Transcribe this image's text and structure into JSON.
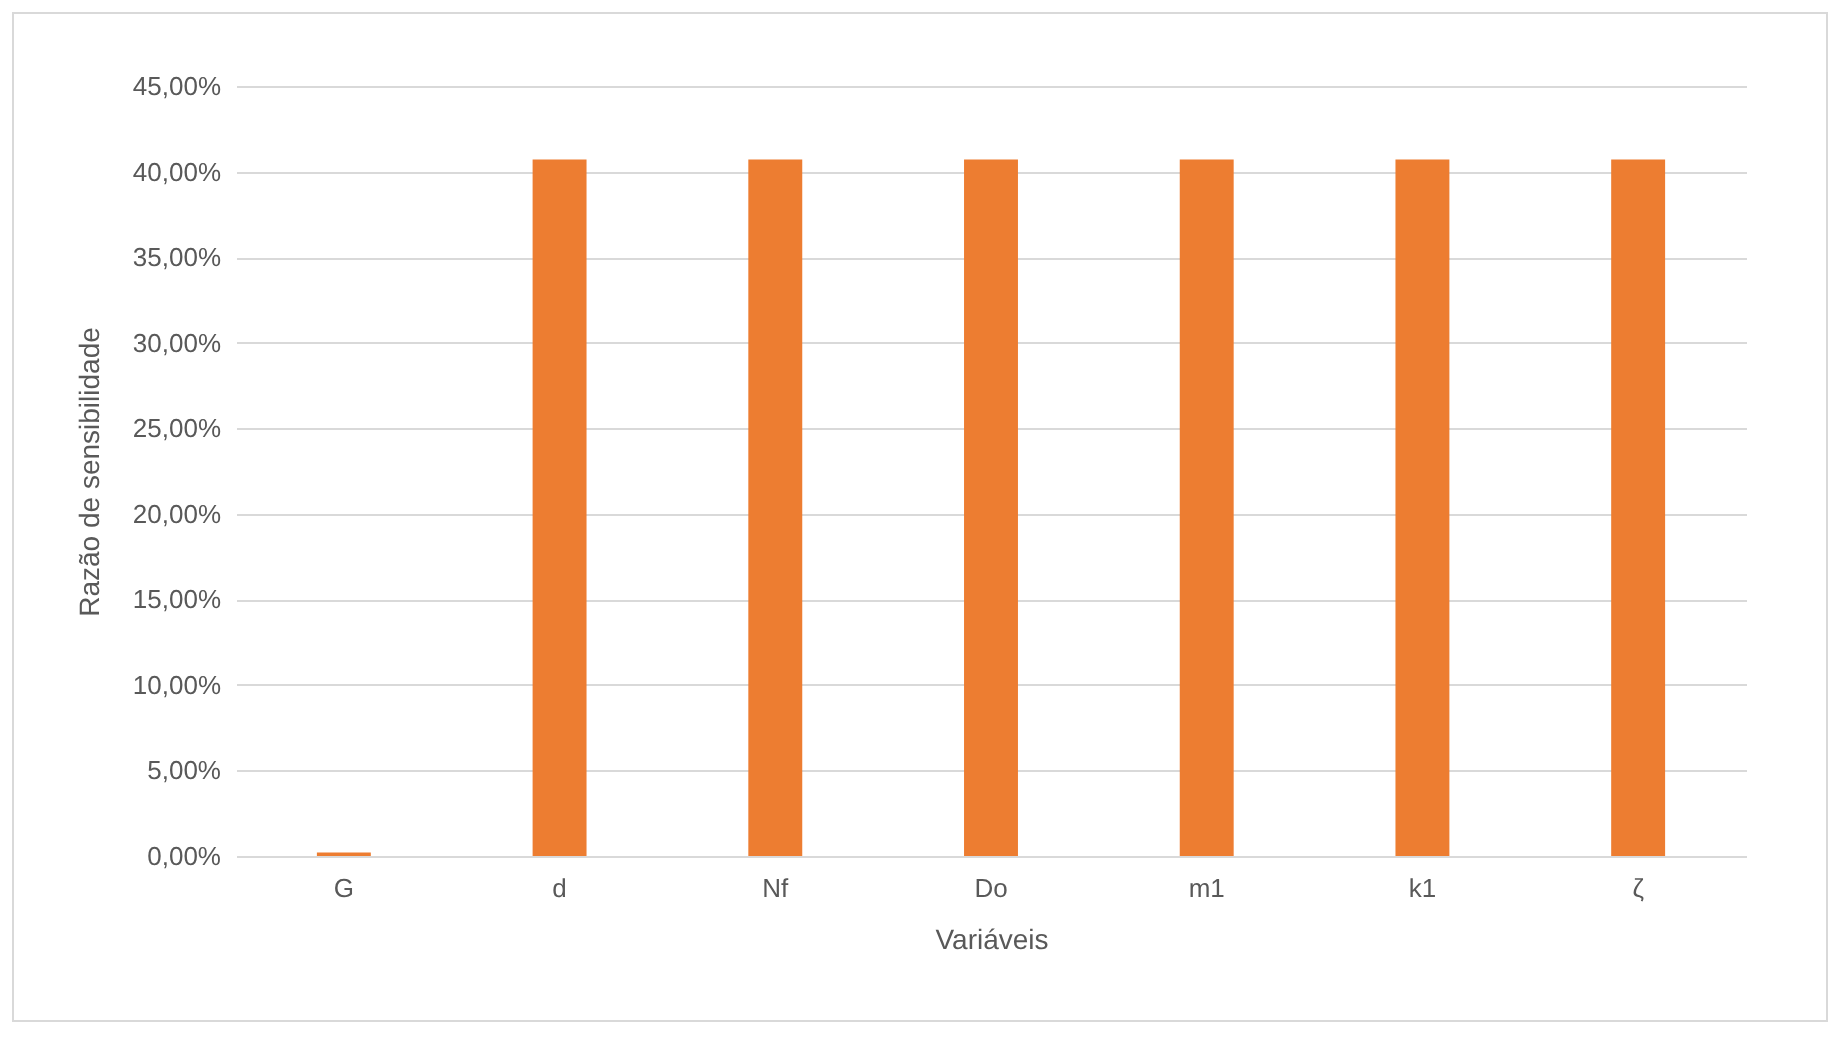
{
  "chart_data": {
    "type": "bar",
    "xlabel": "Variáveis",
    "ylabel": "Razão de sensibilidade",
    "categories": [
      "G",
      "d",
      "Nf",
      "Do",
      "m1",
      "k1",
      "ζ"
    ],
    "values": [
      0.2,
      40.7,
      40.7,
      40.7,
      40.7,
      40.7,
      40.7
    ],
    "color": "#ed7d31",
    "ylim": [
      0,
      45
    ],
    "yticks": [
      {
        "value": 0,
        "label": "0,00%"
      },
      {
        "value": 5,
        "label": "5,00%"
      },
      {
        "value": 10,
        "label": "10,00%"
      },
      {
        "value": 15,
        "label": "15,00%"
      },
      {
        "value": 20,
        "label": "20,00%"
      },
      {
        "value": 25,
        "label": "25,00%"
      },
      {
        "value": 30,
        "label": "30,00%"
      },
      {
        "value": 35,
        "label": "35,00%"
      },
      {
        "value": 40,
        "label": "40,00%"
      },
      {
        "value": 45,
        "label": "45,00%"
      }
    ],
    "grid": "y"
  }
}
